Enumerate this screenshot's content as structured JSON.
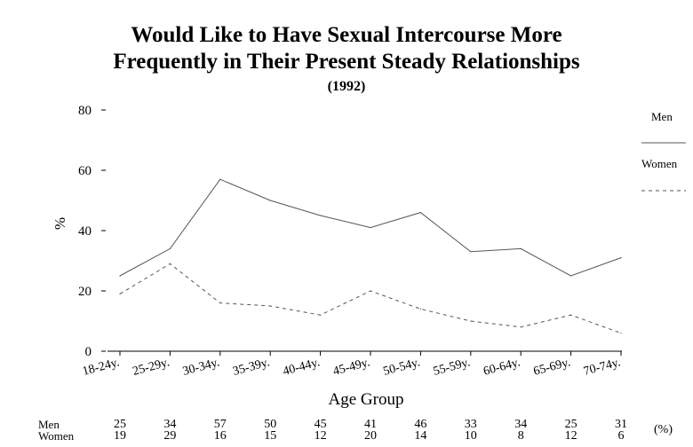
{
  "chart_data": {
    "type": "line",
    "title": "Would Like to Have Sexual Intercourse More",
    "title_line2": "Frequently in Their Present Steady Relationships",
    "subtitle": "(1992)",
    "xlabel": "Age Group",
    "ylabel": "%",
    "ylim": [
      0,
      80
    ],
    "yticks": [
      0,
      20,
      40,
      60,
      80
    ],
    "grid": false,
    "legend_position": "right",
    "categories": [
      "18-24y.",
      "25-29y.",
      "30-34y.",
      "35-39y.",
      "40-44y.",
      "45-49y.",
      "50-54y.",
      "55-59y.",
      "60-64y.",
      "65-69y.",
      "70-74y."
    ],
    "series": [
      {
        "name": "Men",
        "values": [
          25,
          34,
          57,
          50,
          45,
          41,
          46,
          33,
          34,
          25,
          31
        ],
        "style": "solid",
        "color": "#555555"
      },
      {
        "name": "Women",
        "values": [
          19,
          29,
          16,
          15,
          12,
          20,
          14,
          10,
          8,
          12,
          6
        ],
        "style": "dashed",
        "color": "#555555"
      }
    ],
    "table": {
      "row_labels": [
        "Men",
        "Women"
      ],
      "unit": "(%)"
    }
  }
}
